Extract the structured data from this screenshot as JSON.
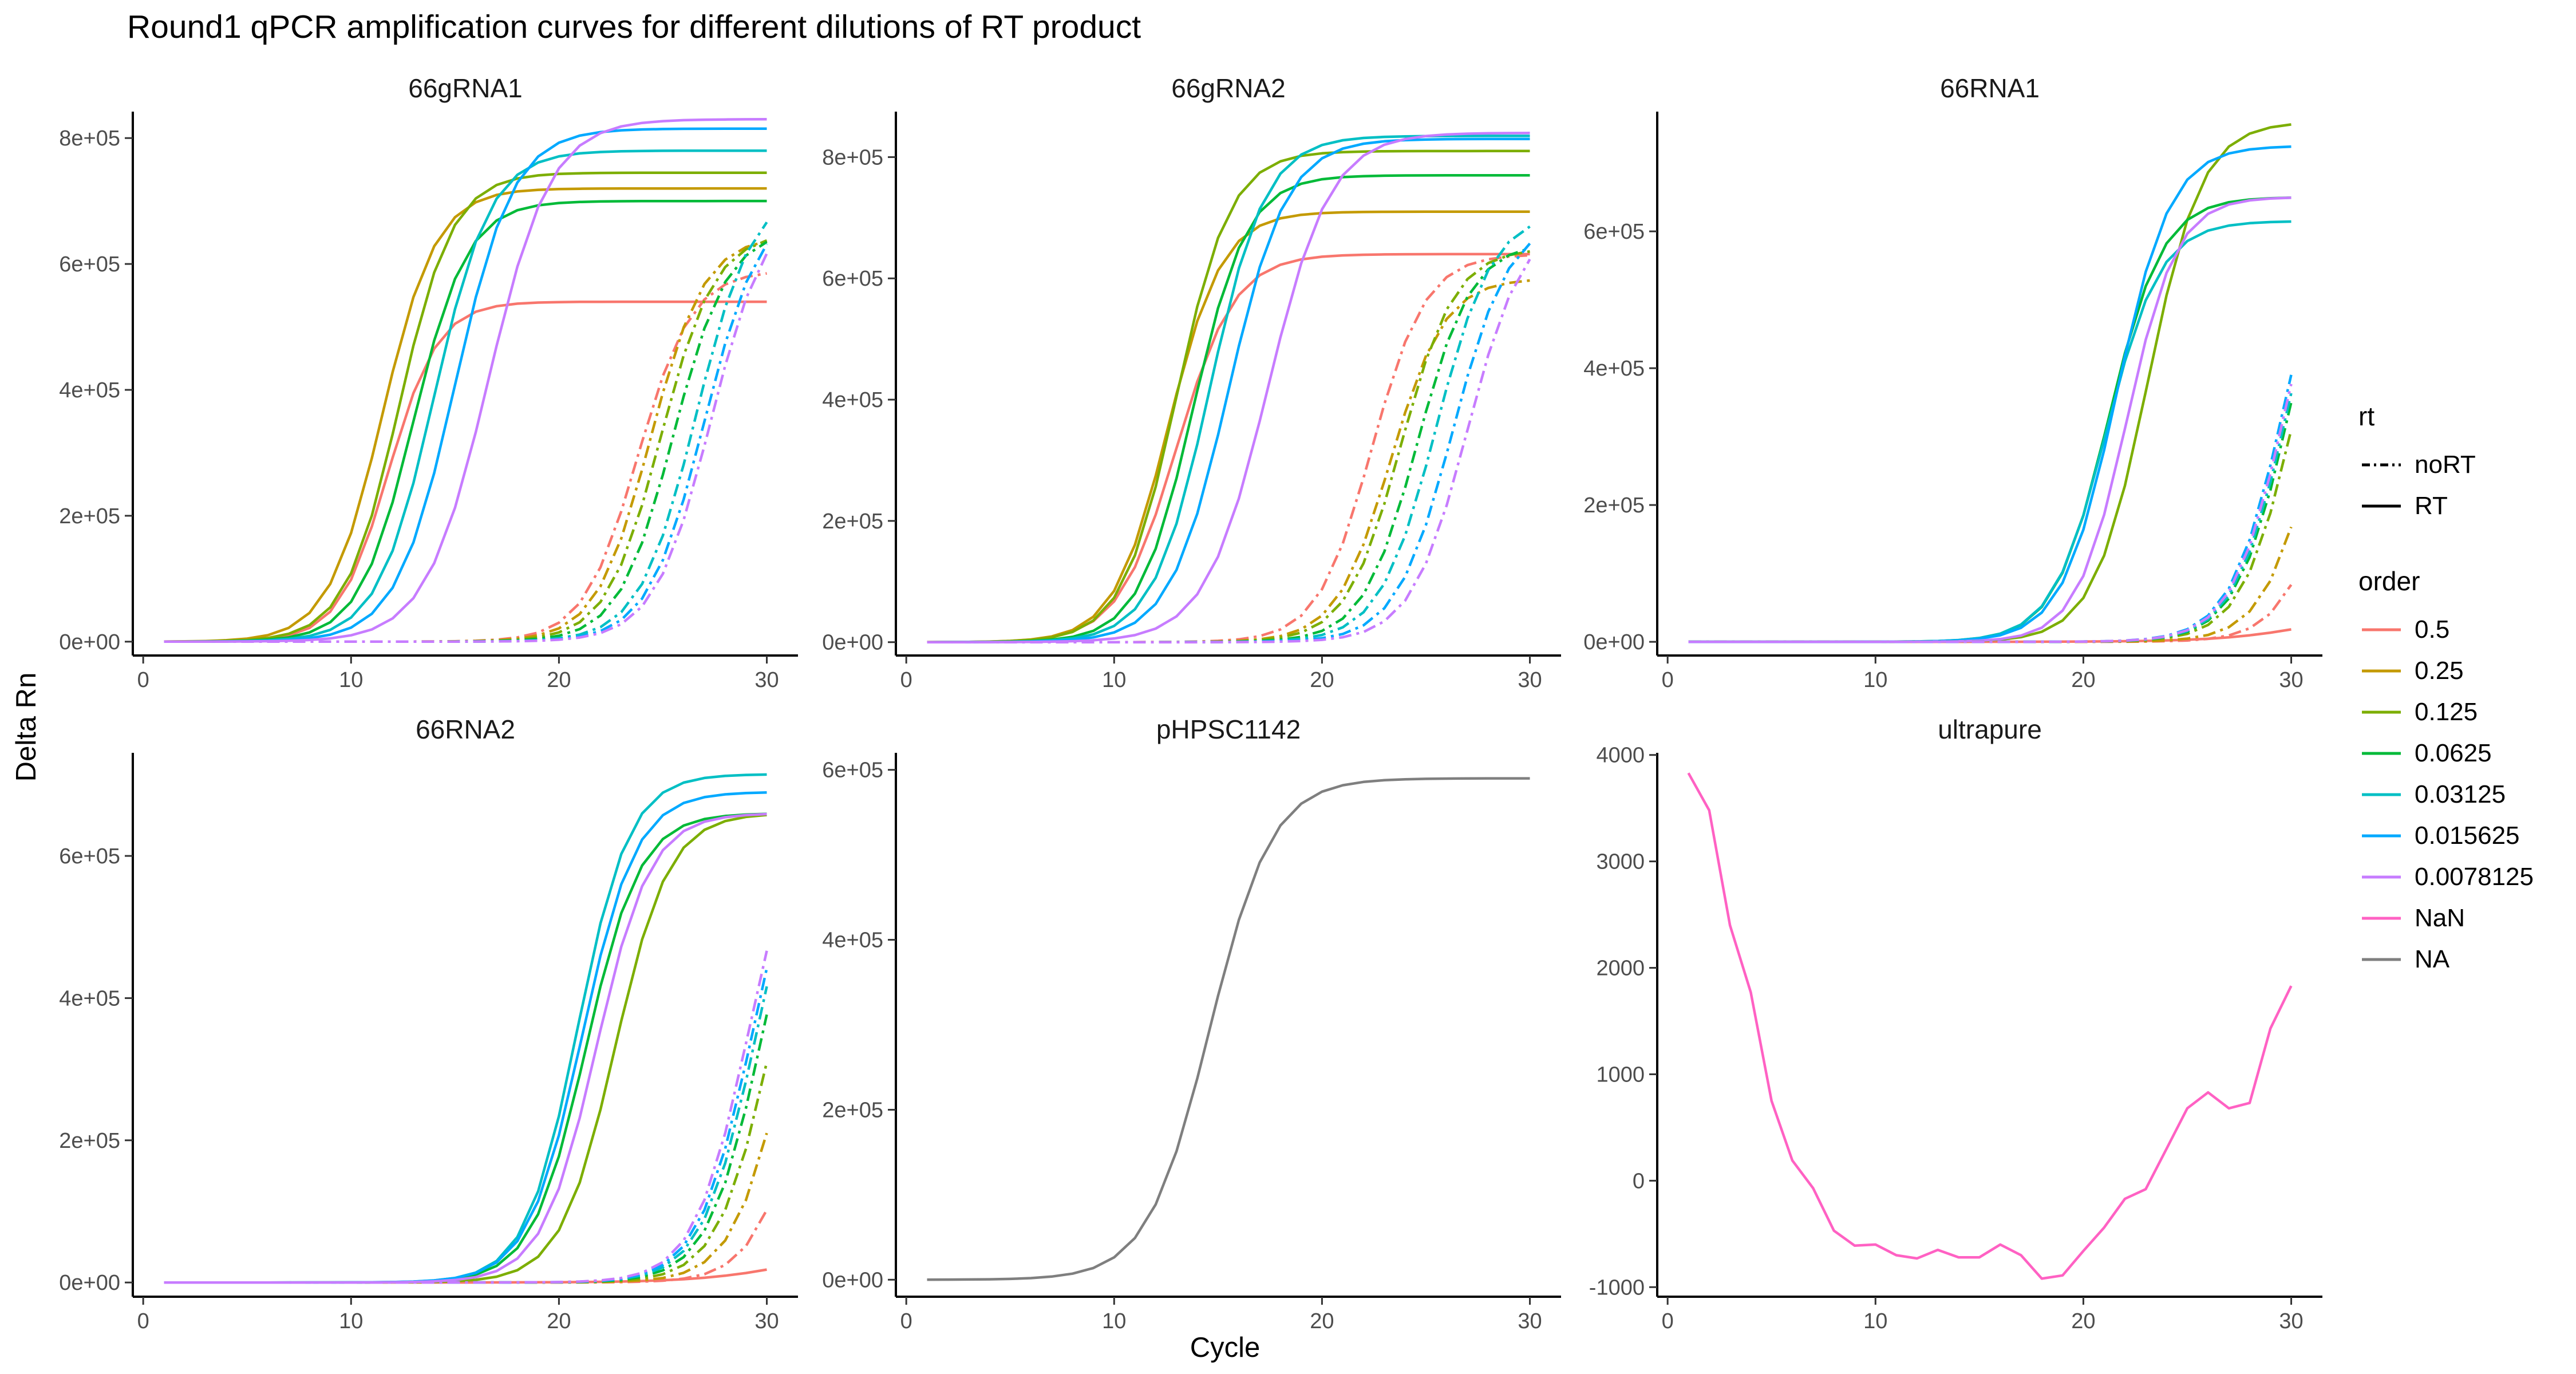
{
  "chart_data": {
    "type": "line",
    "title": "Round1 qPCR amplification curves for different dilutions of RT product",
    "xlabel": "Cycle",
    "ylabel": "Delta Rn",
    "grid": false,
    "legend_placement": "right",
    "xlim": [
      -0.5,
      31.5
    ],
    "xticks": [
      0,
      10,
      20,
      30
    ],
    "legend": {
      "rt": {
        "title": "rt",
        "items": [
          {
            "label": "noRT",
            "dash": "dashdot"
          },
          {
            "label": "RT",
            "dash": "solid"
          }
        ]
      },
      "order": {
        "title": "order",
        "items": [
          {
            "label": "0.5",
            "color": "#F8766D"
          },
          {
            "label": "0.25",
            "color": "#C49A00"
          },
          {
            "label": "0.125",
            "color": "#7CAE00"
          },
          {
            "label": "0.0625",
            "color": "#00BA38"
          },
          {
            "label": "0.03125",
            "color": "#00BFC4"
          },
          {
            "label": "0.015625",
            "color": "#00A9FF"
          },
          {
            "label": "0.0078125",
            "color": "#C77CFF"
          },
          {
            "label": "NaN",
            "color": "#FF61C3"
          },
          {
            "label": "NA",
            "color": "#7F7F7F"
          }
        ]
      }
    },
    "panels": [
      {
        "name": "66gRNA1",
        "ylim": [
          -22000,
          842000
        ],
        "yticks": [
          0,
          200000,
          400000,
          600000,
          800000
        ],
        "yticklabels": [
          "0e+00",
          "2e+05",
          "4e+05",
          "6e+05",
          "8e+05"
        ],
        "series": [
          {
            "order": "0.5",
            "rt": "RT",
            "color": "#F8766D",
            "plateau": 540000,
            "midpoint": 11.8,
            "slope": 1.2
          },
          {
            "order": "0.25",
            "rt": "RT",
            "color": "#C49A00",
            "plateau": 720000,
            "midpoint": 11.5,
            "slope": 1.3
          },
          {
            "order": "0.125",
            "rt": "RT",
            "color": "#7CAE00",
            "plateau": 745000,
            "midpoint": 12.3,
            "slope": 1.3
          },
          {
            "order": "0.0625",
            "rt": "RT",
            "color": "#00BA38",
            "plateau": 700000,
            "midpoint": 13.0,
            "slope": 1.3
          },
          {
            "order": "0.03125",
            "rt": "RT",
            "color": "#00BFC4",
            "plateau": 780000,
            "midpoint": 14.0,
            "slope": 1.35
          },
          {
            "order": "0.015625",
            "rt": "RT",
            "color": "#00A9FF",
            "plateau": 815000,
            "midpoint": 15.0,
            "slope": 1.4
          },
          {
            "order": "0.0078125",
            "rt": "RT",
            "color": "#C77CFF",
            "plateau": 830000,
            "midpoint": 16.6,
            "slope": 1.5
          },
          {
            "order": "0.5",
            "rt": "noRT",
            "color": "#F8766D",
            "plateau": 590000,
            "midpoint": 23.8,
            "slope": 1.3
          },
          {
            "order": "0.25",
            "rt": "noRT",
            "color": "#C49A00",
            "plateau": 645000,
            "midpoint": 24.4,
            "slope": 1.3
          },
          {
            "order": "0.125",
            "rt": "noRT",
            "color": "#7CAE00",
            "plateau": 650000,
            "midpoint": 24.9,
            "slope": 1.3
          },
          {
            "order": "0.0625",
            "rt": "noRT",
            "color": "#00BA38",
            "plateau": 655000,
            "midpoint": 25.5,
            "slope": 1.3
          },
          {
            "order": "0.03125",
            "rt": "noRT",
            "color": "#00BFC4",
            "plateau": 720000,
            "midpoint": 26.6,
            "slope": 1.35
          },
          {
            "order": "0.015625",
            "rt": "noRT",
            "color": "#00A9FF",
            "plateau": 700000,
            "midpoint": 27.0,
            "slope": 1.35
          },
          {
            "order": "0.0078125",
            "rt": "noRT",
            "color": "#C77CFF",
            "plateau": 700000,
            "midpoint": 27.3,
            "slope": 1.35
          }
        ]
      },
      {
        "name": "66gRNA2",
        "ylim": [
          -22000,
          875000
        ],
        "yticks": [
          0,
          200000,
          400000,
          600000,
          800000
        ],
        "yticklabels": [
          "0e+00",
          "2e+05",
          "4e+05",
          "6e+05",
          "8e+05"
        ],
        "series": [
          {
            "order": "0.5",
            "rt": "RT",
            "color": "#F8766D",
            "plateau": 640000,
            "midpoint": 13.0,
            "slope": 1.4
          },
          {
            "order": "0.25",
            "rt": "RT",
            "color": "#C49A00",
            "plateau": 710000,
            "midpoint": 12.6,
            "slope": 1.3
          },
          {
            "order": "0.125",
            "rt": "RT",
            "color": "#7CAE00",
            "plateau": 810000,
            "midpoint": 13.0,
            "slope": 1.3
          },
          {
            "order": "0.0625",
            "rt": "RT",
            "color": "#00BA38",
            "plateau": 770000,
            "midpoint": 13.8,
            "slope": 1.3
          },
          {
            "order": "0.03125",
            "rt": "RT",
            "color": "#00BFC4",
            "plateau": 835000,
            "midpoint": 14.6,
            "slope": 1.35
          },
          {
            "order": "0.015625",
            "rt": "RT",
            "color": "#00A9FF",
            "plateau": 830000,
            "midpoint": 15.5,
            "slope": 1.4
          },
          {
            "order": "0.0078125",
            "rt": "RT",
            "color": "#C77CFF",
            "plateau": 840000,
            "midpoint": 17.4,
            "slope": 1.5
          },
          {
            "order": "0.5",
            "rt": "noRT",
            "color": "#F8766D",
            "plateau": 640000,
            "midpoint": 22.4,
            "slope": 1.3
          },
          {
            "order": "0.25",
            "rt": "noRT",
            "color": "#C49A00",
            "plateau": 600000,
            "midpoint": 23.3,
            "slope": 1.3
          },
          {
            "order": "0.125",
            "rt": "noRT",
            "color": "#7CAE00",
            "plateau": 650000,
            "midpoint": 23.8,
            "slope": 1.3
          },
          {
            "order": "0.0625",
            "rt": "noRT",
            "color": "#00BA38",
            "plateau": 660000,
            "midpoint": 24.6,
            "slope": 1.3
          },
          {
            "order": "0.03125",
            "rt": "noRT",
            "color": "#00BFC4",
            "plateau": 710000,
            "midpoint": 25.5,
            "slope": 1.35
          },
          {
            "order": "0.015625",
            "rt": "noRT",
            "color": "#00A9FF",
            "plateau": 700000,
            "midpoint": 26.3,
            "slope": 1.35
          },
          {
            "order": "0.0078125",
            "rt": "noRT",
            "color": "#C77CFF",
            "plateau": 700000,
            "midpoint": 27.0,
            "slope": 1.35
          }
        ]
      },
      {
        "name": "66RNA1",
        "ylim": [
          -20000,
          775000
        ],
        "yticks": [
          0,
          200000,
          400000,
          600000
        ],
        "yticklabels": [
          "0e+00",
          "2e+05",
          "4e+05",
          "6e+05"
        ],
        "series": [
          {
            "order": "0.5",
            "rt": "RT",
            "color": "#F8766D",
            "plateau": 60000,
            "midpoint": 32.0,
            "slope": 2.4
          },
          {
            "order": "0.125",
            "rt": "RT",
            "color": "#7CAE00",
            "plateau": 760000,
            "midpoint": 23.1,
            "slope": 1.3
          },
          {
            "order": "0.0625",
            "rt": "RT",
            "color": "#00BA38",
            "plateau": 650000,
            "midpoint": 21.2,
            "slope": 1.3
          },
          {
            "order": "0.03125",
            "rt": "RT",
            "color": "#00BFC4",
            "plateau": 615000,
            "midpoint": 21.1,
            "slope": 1.3
          },
          {
            "order": "0.015625",
            "rt": "RT",
            "color": "#00A9FF",
            "plateau": 725000,
            "midpoint": 21.6,
            "slope": 1.3
          },
          {
            "order": "0.0078125",
            "rt": "RT",
            "color": "#C77CFF",
            "plateau": 650000,
            "midpoint": 22.1,
            "slope": 1.2
          },
          {
            "order": "0.5",
            "rt": "noRT",
            "color": "#F8766D",
            "plateau": 700000,
            "midpoint": 32.6,
            "slope": 1.3
          },
          {
            "order": "0.25",
            "rt": "noRT",
            "color": "#C49A00",
            "plateau": 700000,
            "midpoint": 31.5,
            "slope": 1.3
          },
          {
            "order": "0.125",
            "rt": "noRT",
            "color": "#7CAE00",
            "plateau": 700000,
            "midpoint": 30.3,
            "slope": 1.3
          },
          {
            "order": "0.0625",
            "rt": "noRT",
            "color": "#00BA38",
            "plateau": 700000,
            "midpoint": 30.0,
            "slope": 1.3
          },
          {
            "order": "0.03125",
            "rt": "noRT",
            "color": "#00BFC4",
            "plateau": 700000,
            "midpoint": 29.9,
            "slope": 1.3
          },
          {
            "order": "0.015625",
            "rt": "noRT",
            "color": "#00A9FF",
            "plateau": 700000,
            "midpoint": 29.7,
            "slope": 1.3
          },
          {
            "order": "0.0078125",
            "rt": "noRT",
            "color": "#C77CFF",
            "plateau": 700000,
            "midpoint": 29.8,
            "slope": 1.3
          }
        ]
      },
      {
        "name": "66RNA2",
        "ylim": [
          -20000,
          745000
        ],
        "yticks": [
          0,
          200000,
          400000,
          600000
        ],
        "yticklabels": [
          "0e+00",
          "2e+05",
          "4e+05",
          "6e+05"
        ],
        "series": [
          {
            "order": "0.5",
            "rt": "RT",
            "color": "#F8766D",
            "plateau": 60000,
            "midpoint": 32.0,
            "slope": 2.4
          },
          {
            "order": "0.125",
            "rt": "RT",
            "color": "#7CAE00",
            "plateau": 660000,
            "midpoint": 22.7,
            "slope": 1.3
          },
          {
            "order": "0.0625",
            "rt": "RT",
            "color": "#00BA38",
            "plateau": 660000,
            "midpoint": 21.3,
            "slope": 1.3
          },
          {
            "order": "0.03125",
            "rt": "RT",
            "color": "#00BFC4",
            "plateau": 715000,
            "midpoint": 20.9,
            "slope": 1.25
          },
          {
            "order": "0.015625",
            "rt": "RT",
            "color": "#00A9FF",
            "plateau": 690000,
            "midpoint": 21.1,
            "slope": 1.3
          },
          {
            "order": "0.0078125",
            "rt": "RT",
            "color": "#C77CFF",
            "plateau": 660000,
            "midpoint": 21.8,
            "slope": 1.3
          },
          {
            "order": "0.5",
            "rt": "noRT",
            "color": "#F8766D",
            "plateau": 700000,
            "midpoint": 32.3,
            "slope": 1.3
          },
          {
            "order": "0.25",
            "rt": "noRT",
            "color": "#C49A00",
            "plateau": 700000,
            "midpoint": 31.1,
            "slope": 1.3
          },
          {
            "order": "0.125",
            "rt": "noRT",
            "color": "#7CAE00",
            "plateau": 700000,
            "midpoint": 30.3,
            "slope": 1.3
          },
          {
            "order": "0.0625",
            "rt": "noRT",
            "color": "#00BA38",
            "plateau": 700000,
            "midpoint": 29.8,
            "slope": 1.3
          },
          {
            "order": "0.03125",
            "rt": "noRT",
            "color": "#00BFC4",
            "plateau": 700000,
            "midpoint": 29.5,
            "slope": 1.3
          },
          {
            "order": "0.015625",
            "rt": "noRT",
            "color": "#00A9FF",
            "plateau": 700000,
            "midpoint": 29.3,
            "slope": 1.3
          },
          {
            "order": "0.0078125",
            "rt": "noRT",
            "color": "#C77CFF",
            "plateau": 700000,
            "midpoint": 29.1,
            "slope": 1.3
          }
        ]
      },
      {
        "name": "pHPSC1142",
        "ylim": [
          -20000,
          620000
        ],
        "yticks": [
          0,
          200000,
          400000,
          600000
        ],
        "yticklabels": [
          "0e+00",
          "2e+05",
          "4e+05",
          "6e+05"
        ],
        "series": [
          {
            "order": "NA",
            "rt": "RT",
            "color": "#7F7F7F",
            "plateau": 590000,
            "midpoint": 14.6,
            "slope": 1.5
          }
        ]
      },
      {
        "name": "ultrapure",
        "ylim": [
          -1090,
          4020
        ],
        "yticks": [
          -1000,
          0,
          1000,
          2000,
          3000,
          4000
        ],
        "yticklabels": [
          "-1000",
          "0",
          "1000",
          "2000",
          "3000",
          "4000"
        ],
        "series": [
          {
            "order": "NaN",
            "rt": "RT",
            "color": "#FF61C3",
            "x": [
              1,
              2,
              3,
              4,
              5,
              6,
              7,
              8,
              9,
              10,
              11,
              12,
              13,
              14,
              15,
              16,
              17,
              18,
              19,
              20,
              21,
              22,
              23,
              24,
              25,
              26,
              27,
              28,
              29,
              30
            ],
            "y": [
              3830,
              3480,
              2400,
              1770,
              750,
              190,
              -70,
              -470,
              -610,
              -600,
              -700,
              -730,
              -650,
              -720,
              -720,
              -600,
              -700,
              -920,
              -890,
              -660,
              -440,
              -170,
              -80,
              300,
              680,
              830,
              680,
              730,
              1430,
              1830
            ]
          }
        ]
      }
    ]
  }
}
